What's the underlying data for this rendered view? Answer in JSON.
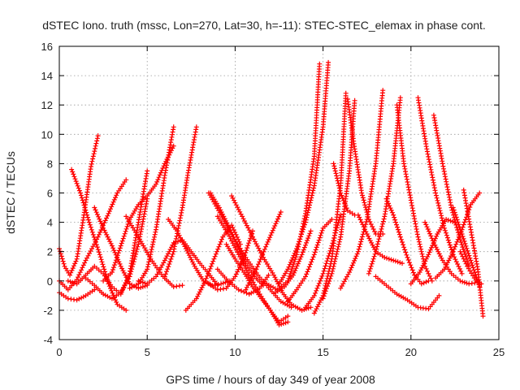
{
  "chart_data": {
    "type": "scatter",
    "title": "dSTEC Iono. truth (mssc, Lon=270, Lat=30, h=-11): STEC-STEC_elemax in phase cont.",
    "xlabel": "GPS time / hours of day 349 of year 2008",
    "ylabel": "dSTEC  / TECUs",
    "xlim": [
      0,
      25
    ],
    "ylim": [
      -4,
      16
    ],
    "xticks": [
      0,
      5,
      10,
      15,
      20,
      25
    ],
    "yticks": [
      -4,
      -2,
      0,
      2,
      4,
      6,
      8,
      10,
      12,
      14,
      16
    ],
    "grid": true,
    "marker": "+",
    "color": "#ff0000",
    "series": [
      {
        "x": [
          0.0,
          0.3,
          0.6,
          1.0,
          1.4,
          1.8,
          2.2
        ],
        "y": [
          2.2,
          1.0,
          0.4,
          1.5,
          4.5,
          7.8,
          9.9
        ]
      },
      {
        "x": [
          0.0,
          0.5,
          1.0,
          1.5,
          2.0
        ],
        "y": [
          -0.8,
          -1.2,
          -1.3,
          -1.0,
          -0.6
        ]
      },
      {
        "x": [
          0.0,
          0.5,
          1.0,
          1.5,
          2.2,
          2.8,
          3.3,
          3.8
        ],
        "y": [
          0.0,
          -0.6,
          0.1,
          1.4,
          3.0,
          4.6,
          6.0,
          6.9
        ]
      },
      {
        "x": [
          0.7,
          1.2,
          1.7,
          2.3,
          2.8,
          3.3,
          3.8
        ],
        "y": [
          7.6,
          6.0,
          4.0,
          1.8,
          -0.2,
          -1.6,
          -2.0
        ]
      },
      {
        "x": [
          0.5,
          1.0,
          1.5,
          2.0,
          2.5,
          3.0,
          3.5,
          4.0,
          4.5,
          5.0
        ],
        "y": [
          0.0,
          -0.2,
          0.4,
          1.0,
          0.5,
          -0.4,
          -0.9,
          0.5,
          4.0,
          7.5
        ]
      },
      {
        "x": [
          1.5,
          2.0,
          2.5,
          3.0,
          3.5,
          4.0,
          4.5,
          5.0
        ],
        "y": [
          0.2,
          -0.3,
          -0.9,
          -1.2,
          -0.8,
          0.3,
          2.5,
          5.6
        ]
      },
      {
        "x": [
          2.0,
          2.5,
          3.0,
          3.5,
          4.0,
          4.5,
          5.0
        ],
        "y": [
          5.0,
          3.6,
          2.4,
          1.0,
          -0.2,
          -0.5,
          -0.3
        ]
      },
      {
        "x": [
          2.5,
          3.0,
          3.5,
          4.0,
          4.5,
          5.0,
          5.5,
          6.0,
          6.5
        ],
        "y": [
          0.0,
          0.6,
          2.4,
          4.2,
          5.2,
          5.8,
          6.6,
          8.0,
          9.2
        ]
      },
      {
        "x": [
          3.8,
          4.5,
          5.2,
          5.9,
          6.5,
          7.0
        ],
        "y": [
          4.4,
          3.0,
          1.5,
          0.3,
          -0.4,
          -0.3
        ]
      },
      {
        "x": [
          4.0,
          4.5,
          5.0,
          5.5,
          6.0,
          6.5
        ],
        "y": [
          -0.5,
          -0.2,
          0.8,
          3.5,
          7.2,
          10.5
        ]
      },
      {
        "x": [
          4.5,
          5.0,
          5.5,
          6.0,
          6.5,
          7.0,
          7.5,
          8.0,
          8.5,
          9.0
        ],
        "y": [
          0.0,
          -0.2,
          0.3,
          1.4,
          2.6,
          2.8,
          2.0,
          1.2,
          0.5,
          -0.3
        ]
      },
      {
        "x": [
          6.2,
          6.7,
          7.2,
          7.7,
          8.2,
          8.7,
          9.2,
          9.7
        ],
        "y": [
          4.2,
          3.4,
          2.2,
          1.0,
          0.0,
          -0.3,
          -0.2,
          0.0
        ]
      },
      {
        "x": [
          6.0,
          6.5,
          7.0,
          7.3,
          7.8
        ],
        "y": [
          0.3,
          2.0,
          5.0,
          7.2,
          10.5
        ]
      },
      {
        "x": [
          7.2,
          7.8,
          8.3,
          8.8,
          9.3,
          9.8,
          10.3
        ],
        "y": [
          -2.0,
          -1.2,
          0.0,
          1.5,
          3.0,
          3.8,
          2.5
        ]
      },
      {
        "x": [
          8.6,
          9.1,
          9.6,
          10.1,
          10.6,
          11.1,
          11.6
        ],
        "y": [
          6.0,
          5.0,
          3.8,
          2.5,
          1.2,
          0.3,
          -0.3
        ]
      },
      {
        "x": [
          8.5,
          9.2,
          9.9,
          10.6,
          11.3,
          12.0,
          12.6,
          13.2
        ],
        "y": [
          6.0,
          4.5,
          3.0,
          1.6,
          0.4,
          -0.6,
          -1.4,
          -1.8
        ]
      },
      {
        "x": [
          8.5,
          9.0,
          9.5,
          10.0,
          10.5,
          11.0
        ],
        "y": [
          -0.2,
          -0.6,
          -0.5,
          0.3,
          1.6,
          3.4
        ]
      },
      {
        "x": [
          9.0,
          9.6,
          10.2,
          10.8,
          11.4,
          12.0,
          12.5,
          13.0
        ],
        "y": [
          4.4,
          3.2,
          1.8,
          0.4,
          -0.9,
          -2.0,
          -2.8,
          -2.4
        ]
      },
      {
        "x": [
          9.5,
          10.0,
          10.5,
          11.0,
          11.5,
          12.0,
          12.5,
          13.0
        ],
        "y": [
          2.5,
          1.5,
          0.6,
          -0.4,
          -1.2,
          -2.0,
          -3.0,
          -2.8
        ]
      },
      {
        "x": [
          9.8,
          10.4,
          11.0,
          11.6,
          12.2,
          12.7,
          13.2,
          13.8,
          14.3
        ],
        "y": [
          5.8,
          4.4,
          3.0,
          1.6,
          0.4,
          -0.8,
          -1.6,
          -2.0,
          -1.8
        ]
      },
      {
        "x": [
          9.0,
          9.6,
          10.2,
          10.8,
          11.4,
          11.9
        ],
        "y": [
          0.8,
          0.0,
          -0.6,
          -0.9,
          -0.5,
          0.4
        ]
      },
      {
        "x": [
          10.6,
          11.2,
          11.8,
          12.2,
          12.6
        ],
        "y": [
          -0.6,
          0.8,
          2.5,
          3.6,
          4.7
        ]
      },
      {
        "x": [
          12.3,
          12.8,
          13.3,
          13.8,
          14.3
        ],
        "y": [
          -0.8,
          -0.4,
          0.4,
          1.8,
          3.4
        ]
      },
      {
        "x": [
          11.8,
          12.4,
          13.0,
          13.5,
          14.0,
          14.5,
          14.8
        ],
        "y": [
          -0.2,
          -0.6,
          0.0,
          1.8,
          4.6,
          8.5,
          14.8
        ]
      },
      {
        "x": [
          12.5,
          13.0,
          13.5,
          14.0,
          14.5,
          15.0,
          15.3
        ],
        "y": [
          -0.2,
          0.8,
          2.2,
          4.0,
          6.5,
          10.5,
          14.9
        ]
      },
      {
        "x": [
          13.0,
          13.5,
          14.0,
          14.5,
          15.0,
          15.5
        ],
        "y": [
          -1.4,
          -0.6,
          0.3,
          1.8,
          3.6,
          4.2
        ]
      },
      {
        "x": [
          14.0,
          14.5,
          15.0,
          15.5,
          16.0
        ],
        "y": [
          -1.8,
          -1.0,
          0.5,
          2.4,
          4.5
        ]
      },
      {
        "x": [
          14.5,
          15.0,
          15.5,
          16.0,
          16.3
        ],
        "y": [
          -2.2,
          -1.0,
          1.5,
          6.5,
          12.8
        ]
      },
      {
        "x": [
          15.0,
          15.5,
          16.0,
          16.5,
          16.8
        ],
        "y": [
          -1.2,
          0.5,
          3.0,
          7.5,
          12.3
        ]
      },
      {
        "x": [
          16.0,
          16.5,
          17.0,
          17.5,
          18.0,
          18.4
        ],
        "y": [
          -0.5,
          0.6,
          2.0,
          4.2,
          8.0,
          13.0
        ]
      },
      {
        "x": [
          15.6,
          16.0,
          16.4,
          16.8
        ],
        "y": [
          8.0,
          6.0,
          4.8,
          4.5
        ]
      },
      {
        "x": [
          16.4,
          16.8,
          17.2,
          17.6,
          18.0,
          18.4
        ],
        "y": [
          12.4,
          9.0,
          6.0,
          4.2,
          3.2,
          3.2
        ]
      },
      {
        "x": [
          17.0,
          17.5,
          18.0,
          18.5,
          19.0,
          19.5
        ],
        "y": [
          4.5,
          3.2,
          2.0,
          1.6,
          1.4,
          1.2
        ]
      },
      {
        "x": [
          17.6,
          18.0,
          18.5,
          19.0,
          19.4
        ],
        "y": [
          0.5,
          2.0,
          4.4,
          8.0,
          12.5
        ]
      },
      {
        "x": [
          18.6,
          19.0,
          19.4,
          19.8,
          20.2,
          20.6,
          21.0
        ],
        "y": [
          5.6,
          4.5,
          3.0,
          1.6,
          0.4,
          -0.2,
          0.0
        ]
      },
      {
        "x": [
          18.0,
          18.6,
          19.2,
          19.8,
          20.4,
          21.0,
          21.6
        ],
        "y": [
          0.3,
          -0.3,
          -0.9,
          -1.3,
          -1.8,
          -1.9,
          -1.0
        ]
      },
      {
        "x": [
          19.2,
          19.6,
          20.0,
          20.4,
          20.8,
          21.2
        ],
        "y": [
          12.0,
          8.0,
          5.5,
          3.0,
          1.0,
          0.0
        ]
      },
      {
        "x": [
          20.0,
          20.5,
          21.0,
          21.5,
          22.0,
          22.5
        ],
        "y": [
          -0.2,
          0.6,
          1.8,
          3.2,
          4.2,
          4.0
        ]
      },
      {
        "x": [
          20.4,
          20.9,
          21.4,
          21.9,
          22.4,
          22.9
        ],
        "y": [
          12.5,
          9.0,
          6.0,
          3.6,
          1.8,
          0.5
        ]
      },
      {
        "x": [
          21.3,
          21.8,
          22.3,
          22.8,
          23.3
        ],
        "y": [
          11.3,
          8.0,
          5.0,
          2.8,
          1.0
        ]
      },
      {
        "x": [
          20.8,
          21.3,
          21.8,
          22.3,
          22.8,
          23.3,
          23.8
        ],
        "y": [
          4.0,
          2.6,
          1.4,
          0.5,
          0.0,
          -0.2,
          -0.1
        ]
      },
      {
        "x": [
          21.4,
          21.9,
          22.4,
          22.9,
          23.4,
          23.9
        ],
        "y": [
          0.2,
          0.8,
          2.0,
          3.5,
          5.2,
          6.0
        ]
      },
      {
        "x": [
          22.4,
          22.9,
          23.4,
          23.9
        ],
        "y": [
          5.0,
          3.2,
          1.4,
          -0.4
        ]
      },
      {
        "x": [
          23.0,
          23.4,
          23.8,
          24.1
        ],
        "y": [
          6.2,
          3.5,
          0.8,
          -2.4
        ]
      },
      {
        "x": [
          22.8,
          23.2,
          23.6,
          24.0
        ],
        "y": [
          2.0,
          1.0,
          0.2,
          -0.2
        ]
      }
    ]
  }
}
